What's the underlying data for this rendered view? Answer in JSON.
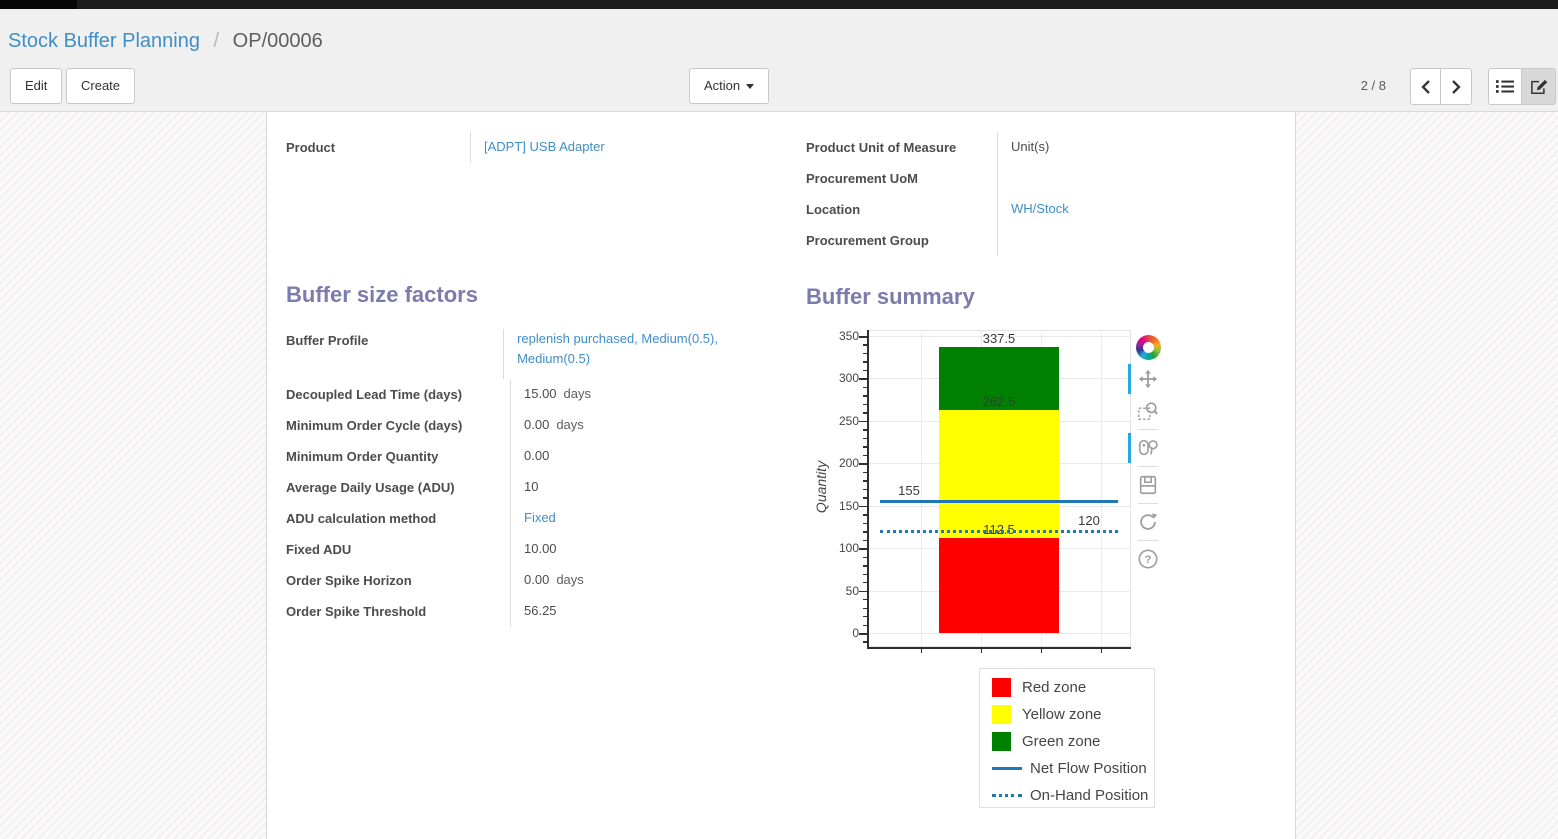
{
  "breadcrumb": {
    "parent": "Stock Buffer Planning",
    "separator": "/",
    "current": "OP/00006"
  },
  "buttons": {
    "edit": "Edit",
    "create": "Create",
    "action": "Action"
  },
  "pager": {
    "value": "2 / 8"
  },
  "view_switcher": {
    "views": [
      "list",
      "form"
    ],
    "active": "form"
  },
  "form": {
    "general_left": [
      {
        "label": "Product",
        "value": "[ADPT] USB Adapter",
        "link": true
      }
    ],
    "general_right": [
      {
        "label": "Product Unit of Measure",
        "value": "Unit(s)",
        "link": false
      },
      {
        "label": "Procurement UoM",
        "value": "",
        "link": false
      },
      {
        "label": "Location",
        "value": "WH/Stock",
        "link": true
      },
      {
        "label": "Procurement Group",
        "value": "",
        "link": false
      }
    ],
    "buffer_factors": {
      "title": "Buffer size factors",
      "rows": [
        {
          "label": "Buffer Profile",
          "value": "replenish purchased, Medium(0.5), Medium(0.5)",
          "link": true
        },
        {
          "label": "Decoupled Lead Time (days)",
          "value": "15.00",
          "suffix": "days"
        },
        {
          "label": "Minimum Order Cycle (days)",
          "value": "0.00",
          "suffix": "days"
        },
        {
          "label": "Minimum Order Quantity",
          "value": "0.00"
        },
        {
          "label": "Average Daily Usage (ADU)",
          "value": "10"
        },
        {
          "label": "ADU calculation method",
          "value": "Fixed",
          "link": true
        },
        {
          "label": "Fixed ADU",
          "value": "10.00"
        },
        {
          "label": "Order Spike Horizon",
          "value": "0.00",
          "suffix": "days"
        },
        {
          "label": "Order Spike Threshold",
          "value": "56.25"
        }
      ]
    },
    "buffer_summary_title": "Buffer summary"
  },
  "chart_data": {
    "type": "bar",
    "title": "",
    "xlabel": "",
    "ylabel": "Quantity",
    "ylim": [
      0,
      350
    ],
    "y_major_step": 50,
    "y_minor_step": 10,
    "grid": true,
    "zones": [
      {
        "name": "Red zone",
        "from": 0,
        "to": 112.5,
        "color": "#fe0000"
      },
      {
        "name": "Yellow zone",
        "from": 112.5,
        "to": 262.5,
        "color": "#ffff00"
      },
      {
        "name": "Green zone",
        "from": 262.5,
        "to": 337.5,
        "color": "#008000"
      }
    ],
    "lines": [
      {
        "name": "Net Flow Position",
        "value": 155,
        "style": "solid",
        "color": "#1f77b4",
        "label_side": "left"
      },
      {
        "name": "On-Hand Position",
        "value": 120,
        "style": "dotted",
        "color": "#1f77b4",
        "label_side": "right"
      }
    ],
    "annotations": [
      "337.5",
      "262.5",
      "112.5",
      "155",
      "120"
    ],
    "legend_position": "below-right",
    "legend": [
      {
        "label": "Red zone",
        "swatch": "rect",
        "color": "#fe0000"
      },
      {
        "label": "Yellow zone",
        "swatch": "rect",
        "color": "#ffff00"
      },
      {
        "label": "Green zone",
        "swatch": "rect",
        "color": "#008000"
      },
      {
        "label": "Net Flow Position",
        "swatch": "line",
        "color": "#1f77b4"
      },
      {
        "label": "On-Hand Position",
        "swatch": "dotted-line",
        "color": "#1f77b4"
      }
    ],
    "bokeh_tools": [
      "bokeh-logo",
      "pan",
      "box-zoom",
      "hover",
      "save",
      "reset",
      "help"
    ],
    "active_tools": [
      "pan",
      "hover"
    ]
  },
  "colors": {
    "heading": "#7c7bad",
    "link": "#3f8ec6",
    "active_tool_bar": "#26aae1"
  }
}
